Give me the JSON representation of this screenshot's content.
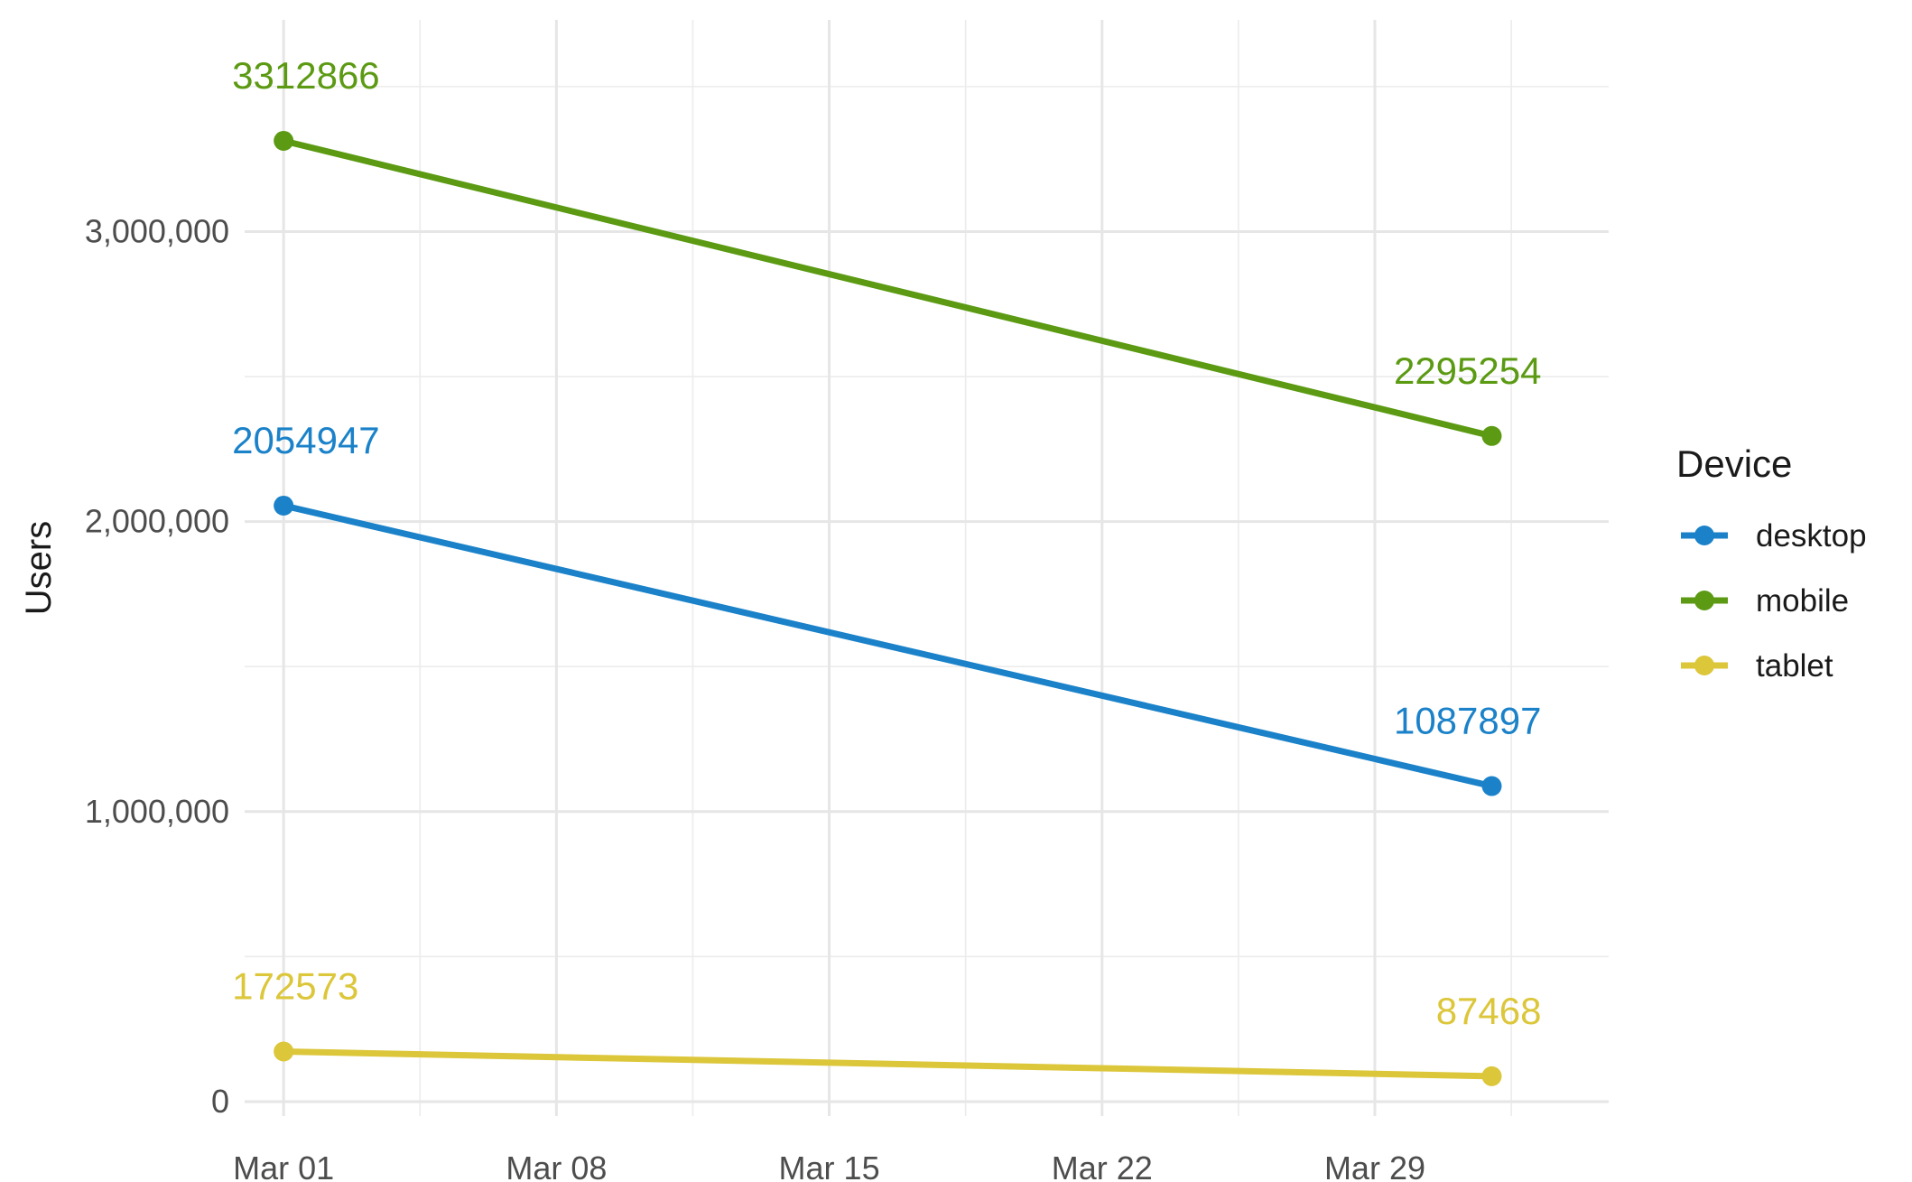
{
  "chart_data": {
    "type": "line",
    "title": "",
    "xlabel": "",
    "ylabel": "Users",
    "x_axis": {
      "type": "date",
      "ticks": [
        "Mar 01",
        "Mar 08",
        "Mar 15",
        "Mar 22",
        "Mar 29"
      ],
      "range": [
        "2025-02-28",
        "2025-04-04"
      ]
    },
    "y_axis": {
      "ticks": [
        "0",
        "1,000,000",
        "2,000,000",
        "3,000,000"
      ],
      "ylim": [
        -50000,
        3730000
      ]
    },
    "grid": true,
    "legend": {
      "title": "Device",
      "position": "right"
    },
    "x": [
      "2025-03-01",
      "2025-04-01"
    ],
    "series": [
      {
        "name": "desktop",
        "color": "#1b82c9",
        "values": [
          2054947,
          1087897
        ],
        "labels": [
          "2054947",
          "1087897"
        ]
      },
      {
        "name": "mobile",
        "color": "#5b9a12",
        "values": [
          3312866,
          2295254
        ],
        "labels": [
          "3312866",
          "2295254"
        ]
      },
      {
        "name": "tablet",
        "color": "#dcc63a",
        "values": [
          172573,
          87468
        ],
        "labels": [
          "172573",
          "87468"
        ]
      }
    ]
  }
}
